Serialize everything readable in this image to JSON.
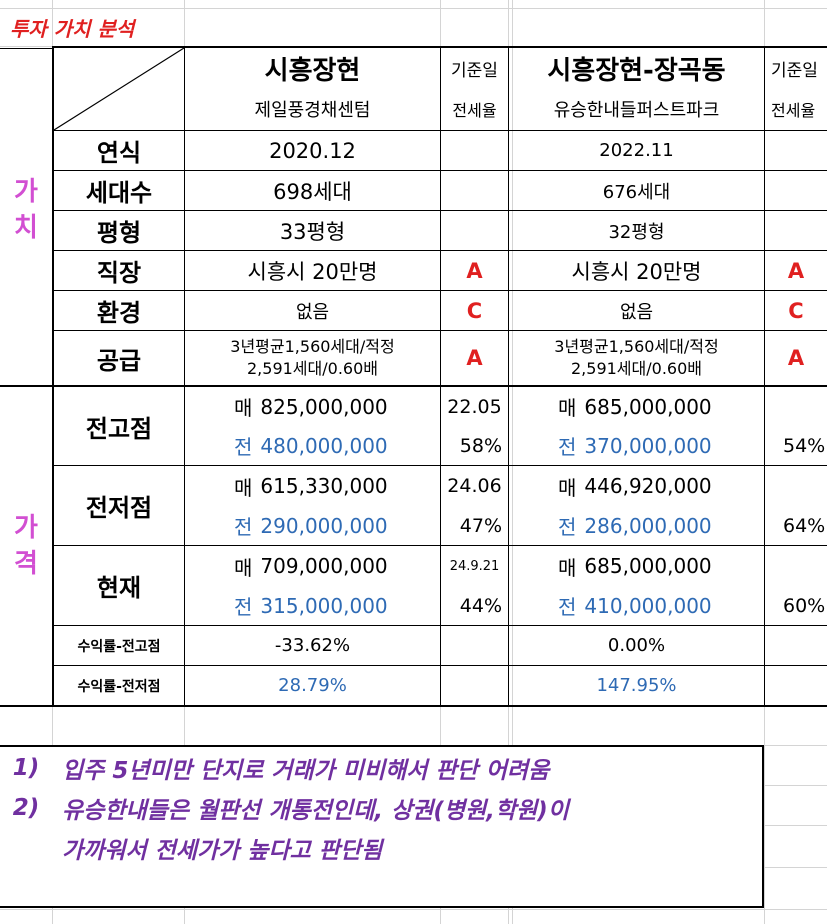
{
  "sheet": {
    "title": "투자 가치 분석",
    "section_value": [
      "가",
      "치"
    ],
    "section_price": [
      "가",
      "격"
    ],
    "complex_a": {
      "region": "시흥장현",
      "name": "제일풍경채센텀"
    },
    "complex_b": {
      "region": "시흥장현-장곡동",
      "name": "유승한내들퍼스트파크"
    },
    "base_date_label": "기준일",
    "jeonse_rate_label": "전세율",
    "rows": {
      "year": {
        "label": "연식",
        "a": "2020.12",
        "b": "2022.11"
      },
      "households": {
        "label": "세대수",
        "a": "698세대",
        "b": "676세대"
      },
      "size": {
        "label": "평형",
        "a": "33평형",
        "b": "32평형"
      },
      "jobs": {
        "label": "직장",
        "a": "시흥시 20만명",
        "a_grade": "A",
        "b": "시흥시 20만명",
        "b_grade": "A"
      },
      "environment": {
        "label": "환경",
        "a": "없음",
        "a_grade": "C",
        "b": "없음",
        "b_grade": "C"
      },
      "supply": {
        "label": "공급",
        "a_line1": "3년평균1,560세대/적정",
        "a_line2": "2,591세대/0.60배",
        "a_grade": "A",
        "b_line1": "3년평균1,560세대/적정",
        "b_line2": "2,591세대/0.60배",
        "b_grade": "A"
      }
    },
    "prices": [
      {
        "label": "전고점",
        "sale_prefix": "매",
        "sale_a": "825,000,000",
        "date_a": "22.05",
        "rent_prefix": "전",
        "rent_a": "480,000,000",
        "ratio_a": "58%",
        "sale_b": "685,000,000",
        "rent_b": "370,000,000",
        "ratio_b": "54%"
      },
      {
        "label": "전저점",
        "sale_prefix": "매",
        "sale_a": "615,330,000",
        "date_a": "24.06",
        "rent_prefix": "전",
        "rent_a": "290,000,000",
        "ratio_a": "47%",
        "sale_b": "446,920,000",
        "rent_b": "286,000,000",
        "ratio_b": "64%"
      },
      {
        "label": "현재",
        "sale_prefix": "매",
        "sale_a": "709,000,000",
        "date_a": "24.9.21",
        "rent_prefix": "전",
        "rent_a": "315,000,000",
        "ratio_a": "44%",
        "sale_b": "685,000,000",
        "rent_b": "410,000,000",
        "ratio_b": "60%"
      }
    ],
    "returns": {
      "high": {
        "label": "수익률-전고점",
        "a": "-33.62%",
        "b": "0.00%"
      },
      "low": {
        "label": "수익률-전저점",
        "a": "28.79%",
        "b": "147.95%"
      }
    },
    "notes": [
      {
        "num": "1)",
        "text": "입주 5년미만 단지로 거래가 미비해서 판단 어려움"
      },
      {
        "num": "2)",
        "text": "유승한내들은 월판선 개통전인데, 상권(병원,학원)이"
      },
      {
        "num": "",
        "text": "가까워서 전세가가 높다고 판단됨"
      }
    ]
  }
}
